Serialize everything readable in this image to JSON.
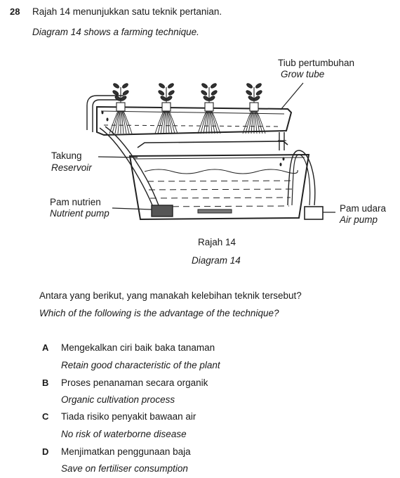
{
  "question": {
    "number": "28",
    "stem_ms": "Rajah 14 menunjukkan satu teknik pertanian.",
    "stem_en": "Diagram 14 shows a farming technique."
  },
  "diagram": {
    "labels": {
      "grow_tube_ms": "Tiub pertumbuhan",
      "grow_tube_en": "Grow tube",
      "reservoir_ms": "Takung",
      "reservoir_en": "Reservoir",
      "nutrient_pump_ms": "Pam nutrien",
      "nutrient_pump_en": "Nutrient pump",
      "air_pump_ms": "Pam udara",
      "air_pump_en": "Air pump"
    },
    "caption_ms": "Rajah 14",
    "caption_en": "Diagram 14"
  },
  "prompt": {
    "ms": "Antara yang berikut, yang manakah kelebihan teknik tersebut?",
    "en": "Which of the following is the advantage of the technique?"
  },
  "options": [
    {
      "letter": "A",
      "ms": "Mengekalkan ciri baik baka tanaman",
      "en": "Retain good characteristic of the plant"
    },
    {
      "letter": "B",
      "ms": "Proses penanaman secara organik",
      "en": "Organic cultivation process"
    },
    {
      "letter": "C",
      "ms": "Tiada risiko penyakit bawaan air",
      "en": "No risk of waterborne disease"
    },
    {
      "letter": "D",
      "ms": "Menjimatkan penggunaan baja",
      "en": "Save on fertiliser consumption"
    }
  ]
}
